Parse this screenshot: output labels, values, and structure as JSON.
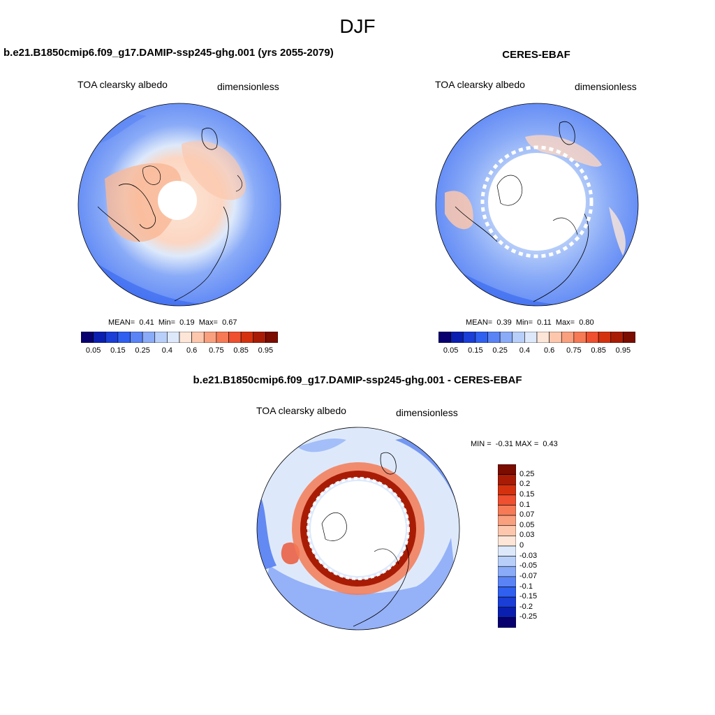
{
  "figure": {
    "season": "DJF"
  },
  "panels": {
    "model": {
      "title": "b.e21.B1850cmip6.f09_g17.DAMIP-ssp245-ghg.001 (yrs 2055-2079)",
      "variable": "TOA clearsky albedo",
      "units": "dimensionless",
      "stats": {
        "mean_label": "MEAN=",
        "mean": "0.41",
        "min_label": "Min=",
        "min": "0.19",
        "max_label": "Max=",
        "max": "0.67"
      }
    },
    "obs": {
      "title": "CERES-EBAF",
      "variable": "TOA clearsky albedo",
      "units": "dimensionless",
      "stats": {
        "mean_label": "MEAN=",
        "mean": "0.39",
        "min_label": "Min=",
        "min": "0.11",
        "max_label": "Max=",
        "max": "0.80"
      }
    },
    "diff": {
      "title": "b.e21.B1850cmip6.f09_g17.DAMIP-ssp245-ghg.001 - CERES-EBAF",
      "variable": "TOA clearsky albedo",
      "units": "dimensionless",
      "stats": {
        "min_label": "MIN =",
        "min": "-0.31",
        "max_label": "MAX =",
        "max": "0.43"
      }
    }
  },
  "colorbars": {
    "abs": {
      "colors": [
        "#08006e",
        "#0a1fb0",
        "#1a3ed6",
        "#2f60ef",
        "#5a84f5",
        "#8aabf7",
        "#b8cff9",
        "#dde9fb",
        "#fde6d8",
        "#fcc7ad",
        "#f9a07f",
        "#f57a55",
        "#ee5030",
        "#d4320f",
        "#a81c05",
        "#7a0c00"
      ],
      "labels": [
        "0.05",
        "0.15",
        "0.25",
        "0.4",
        "0.6",
        "0.75",
        "0.85",
        "0.95"
      ],
      "label_boundaries": [
        1,
        3,
        5,
        7,
        9,
        11,
        13,
        15
      ]
    },
    "diff": {
      "colors": [
        "#7a0c00",
        "#a81c05",
        "#d4320f",
        "#ee5030",
        "#f57a55",
        "#f9a07f",
        "#fcc7ad",
        "#fde6d8",
        "#dde9fb",
        "#b8cff9",
        "#8aabf7",
        "#5a84f5",
        "#2f60ef",
        "#1a3ed6",
        "#0a1fb0",
        "#08006e"
      ],
      "labels": [
        "0.25",
        "0.2",
        "0.15",
        "0.1",
        "0.07",
        "0.05",
        "0.03",
        "0",
        "-0.03",
        "-0.05",
        "-0.07",
        "-0.1",
        "-0.15",
        "-0.2",
        "-0.25"
      ]
    }
  }
}
